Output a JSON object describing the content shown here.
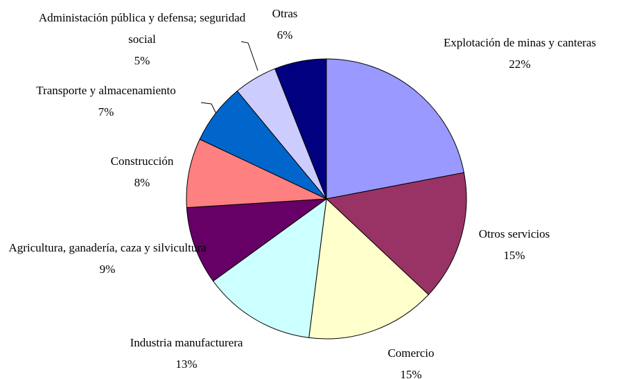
{
  "chart_data": {
    "type": "pie",
    "categories": [
      "Explotación de minas y canteras",
      "Otros servicios",
      "Comercio",
      "Industria manufacturera",
      "Agricultura, ganadería, caza y silvicultura",
      "Construcción",
      "Transporte y almacenamiento",
      "Administación pública y defensa; seguridad social",
      "Otras"
    ],
    "values": [
      22,
      15,
      15,
      13,
      9,
      8,
      7,
      5,
      6
    ],
    "value_labels": [
      "22%",
      "15%",
      "15%",
      "13%",
      "9%",
      "8%",
      "7%",
      "5%",
      "6%"
    ],
    "colors": [
      "#9999ff",
      "#993366",
      "#ffffcc",
      "#ccffff",
      "#660066",
      "#ff8080",
      "#0066cc",
      "#ccccff",
      "#000080"
    ]
  }
}
